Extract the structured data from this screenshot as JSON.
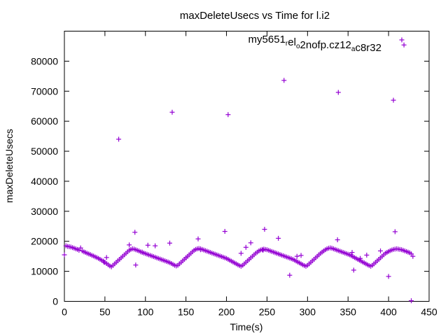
{
  "chart_data": {
    "type": "scatter",
    "title": "maxDeleteUsecs vs Time for l.i2",
    "xlabel": "Time(s)",
    "ylabel": "maxDeleteUsecs",
    "xlim": [
      0,
      450
    ],
    "ylim": [
      0,
      90000
    ],
    "xticks": [
      0,
      50,
      100,
      150,
      200,
      250,
      300,
      350,
      400,
      450
    ],
    "yticks": [
      0,
      10000,
      20000,
      30000,
      40000,
      50000,
      60000,
      70000,
      80000
    ],
    "grid": false,
    "legend_position": "top-right",
    "marker": "plus",
    "color": "#9400d3",
    "series": [
      {
        "name": {
          "base": "my5651",
          "sub1": "r",
          "mid1": "el",
          "sub2": "o",
          "mid2": "2nofp.cz12",
          "sub3": "a",
          "mid3": "c",
          "tail": "8r32"
        },
        "points": [
          [
            0,
            15500
          ],
          [
            2,
            18500
          ],
          [
            4,
            18300
          ],
          [
            6,
            18200
          ],
          [
            8,
            18100
          ],
          [
            10,
            17900
          ],
          [
            12,
            17700
          ],
          [
            14,
            17500
          ],
          [
            16,
            17300
          ],
          [
            18,
            17000
          ],
          [
            20,
            17800
          ],
          [
            22,
            16800
          ],
          [
            24,
            16500
          ],
          [
            26,
            16300
          ],
          [
            28,
            16000
          ],
          [
            30,
            15800
          ],
          [
            32,
            15600
          ],
          [
            34,
            15300
          ],
          [
            36,
            15100
          ],
          [
            38,
            14800
          ],
          [
            40,
            14600
          ],
          [
            42,
            14300
          ],
          [
            44,
            14000
          ],
          [
            46,
            13700
          ],
          [
            48,
            13400
          ],
          [
            50,
            13000
          ],
          [
            52,
            12600
          ],
          [
            54,
            12200
          ],
          [
            56,
            11800
          ],
          [
            58,
            11500
          ],
          [
            60,
            12000
          ],
          [
            62,
            12500
          ],
          [
            64,
            13000
          ],
          [
            66,
            13500
          ],
          [
            68,
            14000
          ],
          [
            70,
            14500
          ],
          [
            72,
            15000
          ],
          [
            74,
            15500
          ],
          [
            76,
            16000
          ],
          [
            78,
            16500
          ],
          [
            80,
            17000
          ],
          [
            82,
            17300
          ],
          [
            84,
            17500
          ],
          [
            86,
            17400
          ],
          [
            88,
            17200
          ],
          [
            90,
            17000
          ],
          [
            92,
            16800
          ],
          [
            94,
            16500
          ],
          [
            96,
            16300
          ],
          [
            98,
            16100
          ],
          [
            100,
            15900
          ],
          [
            102,
            15700
          ],
          [
            104,
            15500
          ],
          [
            106,
            15300
          ],
          [
            108,
            15100
          ],
          [
            110,
            14900
          ],
          [
            112,
            14700
          ],
          [
            114,
            14500
          ],
          [
            116,
            14300
          ],
          [
            118,
            14100
          ],
          [
            120,
            13900
          ],
          [
            122,
            13700
          ],
          [
            124,
            13500
          ],
          [
            126,
            13300
          ],
          [
            128,
            13100
          ],
          [
            130,
            12900
          ],
          [
            132,
            12600
          ],
          [
            134,
            12300
          ],
          [
            136,
            12000
          ],
          [
            138,
            11800
          ],
          [
            140,
            12000
          ],
          [
            142,
            12500
          ],
          [
            144,
            13000
          ],
          [
            146,
            13500
          ],
          [
            148,
            14000
          ],
          [
            150,
            14500
          ],
          [
            152,
            15000
          ],
          [
            154,
            15500
          ],
          [
            156,
            16000
          ],
          [
            158,
            16500
          ],
          [
            160,
            17000
          ],
          [
            162,
            17300
          ],
          [
            164,
            17500
          ],
          [
            166,
            17600
          ],
          [
            168,
            17500
          ],
          [
            170,
            17300
          ],
          [
            172,
            17100
          ],
          [
            174,
            16900
          ],
          [
            176,
            16700
          ],
          [
            178,
            16500
          ],
          [
            180,
            16300
          ],
          [
            182,
            16100
          ],
          [
            184,
            15900
          ],
          [
            186,
            15700
          ],
          [
            188,
            15500
          ],
          [
            190,
            15300
          ],
          [
            192,
            15100
          ],
          [
            194,
            14900
          ],
          [
            196,
            14700
          ],
          [
            198,
            14500
          ],
          [
            200,
            14300
          ],
          [
            202,
            14000
          ],
          [
            204,
            13700
          ],
          [
            206,
            13400
          ],
          [
            208,
            13100
          ],
          [
            210,
            12800
          ],
          [
            212,
            12500
          ],
          [
            214,
            12200
          ],
          [
            216,
            11900
          ],
          [
            218,
            11700
          ],
          [
            220,
            12000
          ],
          [
            222,
            12500
          ],
          [
            224,
            13000
          ],
          [
            226,
            13500
          ],
          [
            228,
            14000
          ],
          [
            230,
            14500
          ],
          [
            232,
            15000
          ],
          [
            234,
            15500
          ],
          [
            236,
            16000
          ],
          [
            238,
            16400
          ],
          [
            240,
            16800
          ],
          [
            242,
            17100
          ],
          [
            244,
            17300
          ],
          [
            246,
            17400
          ],
          [
            248,
            17300
          ],
          [
            250,
            17200
          ],
          [
            252,
            17000
          ],
          [
            254,
            16800
          ],
          [
            256,
            16600
          ],
          [
            258,
            16400
          ],
          [
            260,
            16200
          ],
          [
            262,
            16000
          ],
          [
            264,
            15800
          ],
          [
            266,
            15600
          ],
          [
            268,
            15400
          ],
          [
            270,
            15200
          ],
          [
            272,
            15000
          ],
          [
            274,
            14800
          ],
          [
            276,
            14600
          ],
          [
            278,
            14400
          ],
          [
            280,
            14200
          ],
          [
            282,
            14000
          ],
          [
            284,
            13700
          ],
          [
            286,
            13400
          ],
          [
            288,
            13100
          ],
          [
            290,
            12800
          ],
          [
            292,
            12500
          ],
          [
            294,
            12200
          ],
          [
            296,
            11900
          ],
          [
            298,
            11700
          ],
          [
            300,
            12000
          ],
          [
            302,
            12500
          ],
          [
            304,
            13000
          ],
          [
            306,
            13500
          ],
          [
            308,
            14000
          ],
          [
            310,
            14500
          ],
          [
            312,
            15000
          ],
          [
            314,
            15500
          ],
          [
            316,
            16000
          ],
          [
            318,
            16400
          ],
          [
            320,
            16800
          ],
          [
            322,
            17200
          ],
          [
            324,
            17500
          ],
          [
            326,
            17700
          ],
          [
            328,
            17800
          ],
          [
            330,
            17700
          ],
          [
            332,
            17500
          ],
          [
            334,
            17300
          ],
          [
            336,
            17100
          ],
          [
            338,
            16900
          ],
          [
            340,
            16700
          ],
          [
            342,
            16500
          ],
          [
            344,
            16300
          ],
          [
            346,
            16100
          ],
          [
            348,
            15900
          ],
          [
            350,
            15700
          ],
          [
            352,
            15500
          ],
          [
            354,
            15200
          ],
          [
            356,
            14900
          ],
          [
            358,
            14600
          ],
          [
            360,
            14300
          ],
          [
            362,
            14000
          ],
          [
            364,
            13700
          ],
          [
            366,
            13400
          ],
          [
            368,
            13100
          ],
          [
            370,
            12800
          ],
          [
            372,
            12500
          ],
          [
            374,
            12200
          ],
          [
            376,
            11900
          ],
          [
            378,
            11700
          ],
          [
            380,
            12000
          ],
          [
            382,
            12500
          ],
          [
            384,
            13000
          ],
          [
            386,
            13500
          ],
          [
            388,
            14000
          ],
          [
            390,
            14500
          ],
          [
            392,
            15000
          ],
          [
            394,
            15500
          ],
          [
            396,
            16000
          ],
          [
            398,
            16300
          ],
          [
            400,
            16600
          ],
          [
            402,
            16900
          ],
          [
            404,
            17100
          ],
          [
            406,
            17300
          ],
          [
            408,
            17400
          ],
          [
            410,
            17500
          ],
          [
            412,
            17400
          ],
          [
            414,
            17300
          ],
          [
            416,
            17200
          ],
          [
            418,
            17000
          ],
          [
            420,
            16800
          ],
          [
            422,
            16600
          ],
          [
            424,
            16400
          ],
          [
            426,
            16200
          ],
          [
            428,
            15800
          ],
          [
            67,
            54000
          ],
          [
            133,
            63000
          ],
          [
            202,
            62200
          ],
          [
            271,
            73600
          ],
          [
            338,
            69600
          ],
          [
            406,
            67000
          ],
          [
            419,
            85400
          ],
          [
            87,
            23000
          ],
          [
            165,
            20800
          ],
          [
            198,
            23300
          ],
          [
            247,
            24000
          ],
          [
            264,
            21000
          ],
          [
            337,
            20500
          ],
          [
            408,
            23200
          ],
          [
            80,
            18800
          ],
          [
            96,
            16400
          ],
          [
            103,
            18700
          ],
          [
            112,
            18500
          ],
          [
            130,
            19400
          ],
          [
            150,
            14500
          ],
          [
            168,
            17200
          ],
          [
            218,
            16000
          ],
          [
            224,
            18000
          ],
          [
            230,
            19500
          ],
          [
            245,
            17000
          ],
          [
            287,
            15000
          ],
          [
            292,
            15300
          ],
          [
            355,
            16300
          ],
          [
            365,
            14300
          ],
          [
            373,
            15400
          ],
          [
            390,
            16800
          ],
          [
            88,
            12100
          ],
          [
            278,
            8700
          ],
          [
            357,
            10400
          ],
          [
            400,
            8300
          ],
          [
            430,
            15000
          ],
          [
            428,
            200
          ],
          [
            49,
            13000
          ],
          [
            52,
            14600
          ]
        ]
      }
    ]
  }
}
